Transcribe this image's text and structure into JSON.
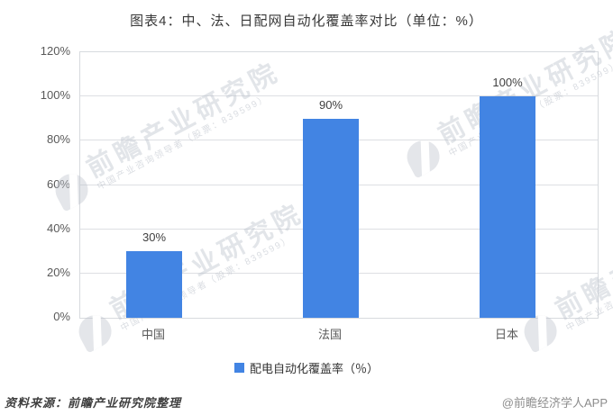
{
  "chart_data": {
    "type": "bar",
    "title": "图表4：中、法、日配网自动化覆盖率对比（单位：%）",
    "categories": [
      "中国",
      "法国",
      "日本"
    ],
    "series": [
      {
        "name": "配电自动化覆盖率（％）",
        "values": [
          30,
          90,
          100
        ]
      }
    ],
    "value_labels": [
      "30%",
      "90%",
      "100%"
    ],
    "xlabel": "",
    "ylabel": "",
    "ylim": [
      0,
      120
    ],
    "ytick_step": 20,
    "ytick_suffix": "%",
    "grid": true,
    "legend_position": "bottom",
    "colors": {
      "bar": "#4284E3",
      "gridline": "#DDDFE3",
      "axis_text": "#595959",
      "value_label": "#3F3F3F",
      "title": "#383838"
    }
  },
  "legend": {
    "label": "配电自动化覆盖率（％）",
    "swatch_color": "#4284E3"
  },
  "footer": {
    "source": "资料来源：前瞻产业研究院整理",
    "attribution": "@前瞻经济学人APP"
  },
  "watermark": {
    "text": "前瞻产业研究院",
    "subtext": "中国产业咨询领导者（股票：839599）"
  }
}
